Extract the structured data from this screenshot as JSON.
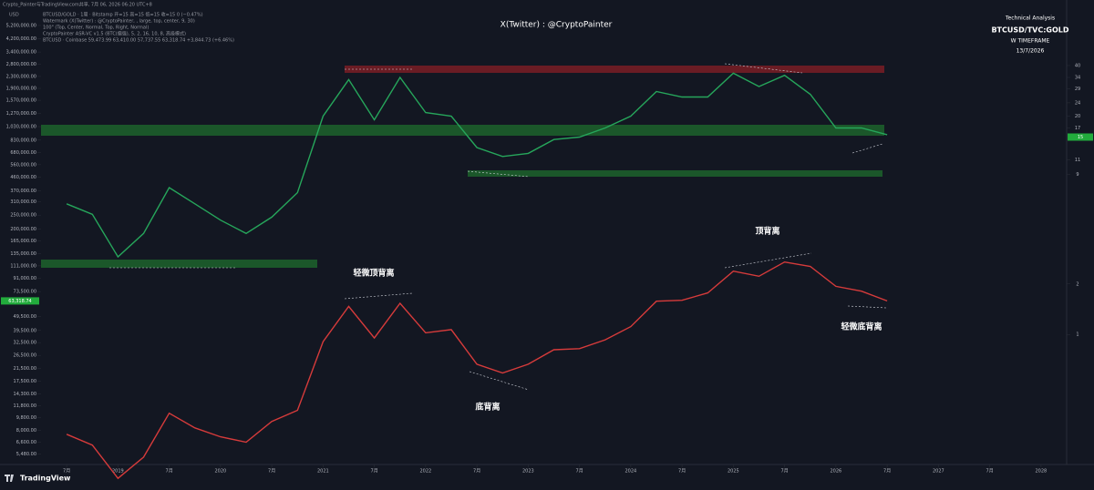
{
  "header": {
    "share": "Crypto_Painter与TradingView.com共享, 7月 06, 2026 06:20 UTC+8",
    "lines": [
      "BTCUSD/GOLD · 1周 · Bitstamp  开=15  高=15  低=15  收=15  0 (−0.47%)",
      "Watermark (X(Twitter) : @CryptoPainter, , large, top, center, 9, 30)",
      "100\" (Top, Center, Normal, Top, Right, Normal)",
      "CryptoPainter ASR-VC v1.5 (BTC(偏强), 5, 2, 16, 10, 8, 高级模式)",
      "BTCUSD · Coinbase  59,473.99  63,410.00  57,737.55  63,318.74  +3,844.73 (+6.46%)"
    ]
  },
  "footer": {
    "brand": "TradingView"
  },
  "chart_data": {
    "type": "line",
    "log_scale": true,
    "y_unit": "USD",
    "watermark": "X(Twitter) : @CryptoPainter",
    "info": [
      "Technical Analysis",
      "BTCUSD/TVC:GOLD",
      "W TIMEFRAME",
      "13/7/2026"
    ],
    "annotations": [
      "轻微顶背离",
      "底背离",
      "顶背离",
      "轻微底背离"
    ],
    "x": [
      "2018-07",
      "2018-10",
      "2019-01",
      "2019-04",
      "2019-07",
      "2019-10",
      "2020-01",
      "2020-04",
      "2020-07",
      "2020-10",
      "2021-01",
      "2021-04",
      "2021-07",
      "2021-10",
      "2022-01",
      "2022-04",
      "2022-07",
      "2022-10",
      "2023-01",
      "2023-04",
      "2023-07",
      "2023-10",
      "2024-01",
      "2024-04",
      "2024-07",
      "2024-10",
      "2025-01",
      "2025-04",
      "2025-07",
      "2025-10",
      "2026-01",
      "2026-04",
      "2026-07"
    ],
    "series": [
      {
        "name": "BTCUSD/GOLD",
        "color": "#26a65b",
        "axis": "y2",
        "values": [
          6.0,
          5.2,
          2.9,
          4.0,
          7.5,
          6.0,
          4.8,
          4.0,
          5.0,
          7.0,
          20,
          33,
          19,
          34,
          21,
          20,
          13,
          11.5,
          12,
          14.5,
          15,
          17,
          20,
          28,
          26,
          26,
          36,
          30,
          35,
          27,
          17,
          17,
          15.5
        ]
      },
      {
        "name": "BTCUSD",
        "color": "#d63b3b",
        "values": [
          7500,
          6300,
          3700,
          5200,
          10500,
          8300,
          7200,
          6600,
          9200,
          11000,
          33000,
          58000,
          35000,
          61000,
          38000,
          40000,
          23000,
          20000,
          23000,
          29000,
          29500,
          34000,
          42000,
          63000,
          64000,
          72000,
          102000,
          94000,
          118000,
          110000,
          80000,
          74000,
          63318.74
        ]
      }
    ],
    "xlim": [
      "2018-04",
      "2028-04"
    ],
    "xticks": [
      {
        "value": "2018-07",
        "label": "7月"
      },
      {
        "value": "2019-01",
        "label": "2019"
      },
      {
        "value": "2019-07",
        "label": "7月"
      },
      {
        "value": "2020-01",
        "label": "2020"
      },
      {
        "value": "2020-07",
        "label": "7月"
      },
      {
        "value": "2021-01",
        "label": "2021"
      },
      {
        "value": "2021-07",
        "label": "7月"
      },
      {
        "value": "2022-01",
        "label": "2022"
      },
      {
        "value": "2022-07",
        "label": "7月"
      },
      {
        "value": "2023-01",
        "label": "2023"
      },
      {
        "value": "2023-07",
        "label": "7月"
      },
      {
        "value": "2024-01",
        "label": "2024"
      },
      {
        "value": "2024-07",
        "label": "7月"
      },
      {
        "value": "2025-01",
        "label": "2025"
      },
      {
        "value": "2025-07",
        "label": "7月"
      },
      {
        "value": "2026-01",
        "label": "2026"
      },
      {
        "value": "2026-07",
        "label": "7月"
      },
      {
        "value": "2027-01",
        "label": "2027"
      },
      {
        "value": "2027-07",
        "label": "7月"
      },
      {
        "value": "2028-01",
        "label": "2028"
      }
    ],
    "ylim": [
      4620,
      5840000
    ],
    "yticks": [
      {
        "value": 5200000,
        "label": "5,200,000.00"
      },
      {
        "value": 4200000,
        "label": "4,200,000.00"
      },
      {
        "value": 3400000,
        "label": "3,400,000.00"
      },
      {
        "value": 2800000,
        "label": "2,800,000.00"
      },
      {
        "value": 2300000,
        "label": "2,300,000.00"
      },
      {
        "value": 1900000,
        "label": "1,900,000.00"
      },
      {
        "value": 1570000,
        "label": "1,570,000.00"
      },
      {
        "value": 1270000,
        "label": "1,270,000.00"
      },
      {
        "value": 1030000,
        "label": "1,030,000.00"
      },
      {
        "value": 830000,
        "label": "830,000.00"
      },
      {
        "value": 680000,
        "label": "680,000.00"
      },
      {
        "value": 560000,
        "label": "560,000.00"
      },
      {
        "value": 460000,
        "label": "460,000.00"
      },
      {
        "value": 370000,
        "label": "370,000.00"
      },
      {
        "value": 310000,
        "label": "310,000.00"
      },
      {
        "value": 250000,
        "label": "250,000.00"
      },
      {
        "value": 200000,
        "label": "200,000.00"
      },
      {
        "value": 165000,
        "label": "165,000.00"
      },
      {
        "value": 135000,
        "label": "135,000.00"
      },
      {
        "value": 111000,
        "label": "111,000.00"
      },
      {
        "value": 91000,
        "label": "91,000.00"
      },
      {
        "value": 73500,
        "label": "73,500.00"
      },
      {
        "value": 49500,
        "label": "49,500.00"
      },
      {
        "value": 39500,
        "label": "39,500.00"
      },
      {
        "value": 32500,
        "label": "32,500.00"
      },
      {
        "value": 26500,
        "label": "26,500.00"
      },
      {
        "value": 21500,
        "label": "21,500.00"
      },
      {
        "value": 17500,
        "label": "17,500.00"
      },
      {
        "value": 14300,
        "label": "14,300.00"
      },
      {
        "value": 11800,
        "label": "11,800.00"
      },
      {
        "value": 9800,
        "label": "9,800.00"
      },
      {
        "value": 8000,
        "label": "8,000.00"
      },
      {
        "value": 6600,
        "label": "6,600.00"
      },
      {
        "value": 5480,
        "label": "5,480.00"
      }
    ],
    "y2lim": [
      0.168,
      76.6
    ],
    "y2ticks": [
      1,
      2,
      9,
      11,
      17,
      20,
      24,
      29,
      34,
      40
    ],
    "price_tags": [
      {
        "value": 63318.74,
        "label": "63,318.74",
        "axis": "y"
      },
      {
        "value": 15,
        "label": "15",
        "axis": "y2"
      }
    ]
  }
}
